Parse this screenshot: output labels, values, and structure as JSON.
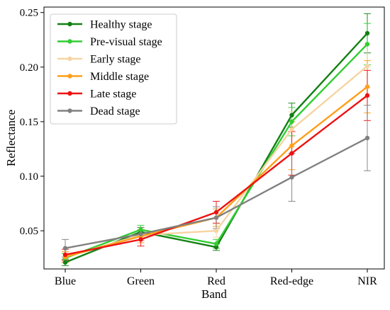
{
  "chart_data": {
    "type": "line",
    "xlabel": "Band",
    "ylabel": "Reflectance",
    "categories": [
      "Blue",
      "Green",
      "Red",
      "Red-edge",
      "NIR"
    ],
    "ylim": [
      0.015,
      0.255
    ],
    "yticks": [
      "0.05",
      "0.10",
      "0.15",
      "0.20",
      "0.25"
    ],
    "grid": false,
    "legend_position": "top-left",
    "series": [
      {
        "name": "Healthy stage",
        "color": "#138013",
        "values": [
          0.021,
          0.049,
          0.035,
          0.156,
          0.231
        ],
        "errors": [
          0.003,
          0.004,
          0.003,
          0.011,
          0.018
        ]
      },
      {
        "name": "Pre-visual stage",
        "color": "#33cc33",
        "values": [
          0.025,
          0.051,
          0.038,
          0.15,
          0.221
        ],
        "errors": [
          0.004,
          0.004,
          0.004,
          0.013,
          0.019
        ]
      },
      {
        "name": "Early stage",
        "color": "#f6d4a4",
        "values": [
          0.026,
          0.046,
          0.05,
          0.143,
          0.201
        ],
        "errors": [
          0.004,
          0.005,
          0.006,
          0.016,
          0.02
        ]
      },
      {
        "name": "Middle stage",
        "color": "#ff9f1a",
        "values": [
          0.026,
          0.045,
          0.062,
          0.128,
          0.182
        ],
        "errors": [
          0.005,
          0.006,
          0.008,
          0.022,
          0.024
        ]
      },
      {
        "name": "Late stage",
        "color": "#ee1111",
        "values": [
          0.028,
          0.042,
          0.067,
          0.121,
          0.174
        ],
        "errors": [
          0.005,
          0.006,
          0.01,
          0.02,
          0.023
        ]
      },
      {
        "name": "Dead stage",
        "color": "#808080",
        "values": [
          0.034,
          0.047,
          0.062,
          0.099,
          0.135
        ],
        "errors": [
          0.008,
          0.006,
          0.01,
          0.022,
          0.03
        ]
      }
    ]
  }
}
